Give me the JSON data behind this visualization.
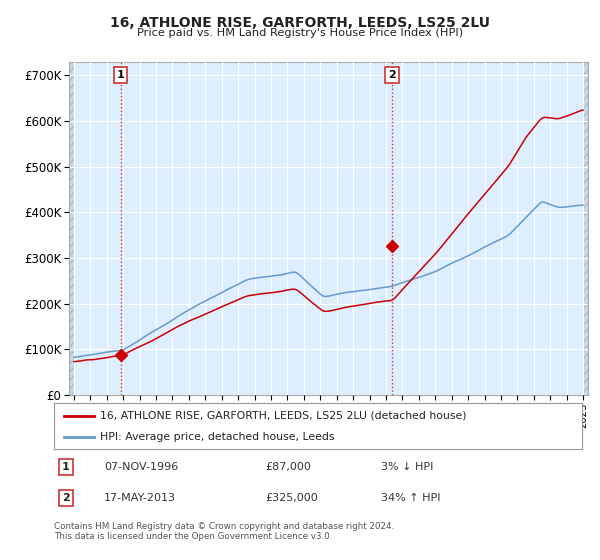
{
  "title": "16, ATHLONE RISE, GARFORTH, LEEDS, LS25 2LU",
  "subtitle": "Price paid vs. HM Land Registry's House Price Index (HPI)",
  "legend_red": "16, ATHLONE RISE, GARFORTH, LEEDS, LS25 2LU (detached house)",
  "legend_blue": "HPI: Average price, detached house, Leeds",
  "transaction1_date": "07-NOV-1996",
  "transaction1_price": "£87,000",
  "transaction1_hpi": "3% ↓ HPI",
  "transaction2_date": "17-MAY-2013",
  "transaction2_price": "£325,000",
  "transaction2_hpi": "34% ↑ HPI",
  "footer": "Contains HM Land Registry data © Crown copyright and database right 2024.\nThis data is licensed under the Open Government Licence v3.0.",
  "fig_bg_color": "#ffffff",
  "plot_bg_color": "#ddeeff",
  "grid_color": "#ffffff",
  "red_line_color": "#cc0000",
  "blue_line_color": "#6699cc",
  "marker_color": "#cc0000",
  "dashed_line_color": "#cc3333",
  "ylim": [
    0,
    730000
  ],
  "yticks": [
    0,
    100000,
    200000,
    300000,
    400000,
    500000,
    600000,
    700000
  ],
  "ytick_labels": [
    "£0",
    "£100K",
    "£200K",
    "£300K",
    "£400K",
    "£500K",
    "£600K",
    "£700K"
  ],
  "transaction1_x": 1996.85,
  "transaction1_y": 87000,
  "transaction2_x": 2013.37,
  "transaction2_y": 325000,
  "xlim_left": 1993.7,
  "xlim_right": 2025.3
}
